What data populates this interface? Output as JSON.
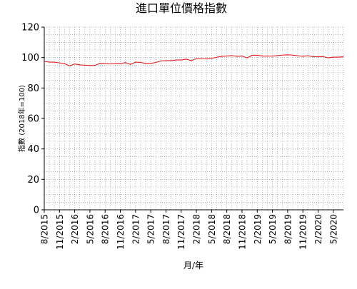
{
  "chart_data": {
    "type": "line",
    "title": "進口單位價格指數",
    "xlabel": "月/年",
    "ylabel": "指數 (2018年=100)",
    "ylim": [
      0,
      120
    ],
    "yticks": [
      "0",
      "20",
      "40",
      "60",
      "80",
      "100",
      "120"
    ],
    "x_tick_labels": [
      "8/2015",
      "11/2015",
      "2/2016",
      "5/2016",
      "8/2016",
      "11/2016",
      "2/2017",
      "5/2017",
      "8/2017",
      "11/2017",
      "2/2018",
      "5/2018",
      "8/2018",
      "11/2018",
      "2/2019",
      "5/2019",
      "8/2019",
      "11/2019",
      "2/2020",
      "5/2020"
    ],
    "grid": true,
    "legend": "none",
    "colors": {
      "series": "#e41a1c",
      "grid": "#888888",
      "axis": "#000000"
    },
    "series": [
      {
        "x": [
          "8/2015",
          "9/2015",
          "10/2015",
          "11/2015",
          "12/2015",
          "1/2016",
          "2/2016",
          "3/2016",
          "4/2016",
          "5/2016",
          "6/2016",
          "7/2016",
          "8/2016",
          "9/2016",
          "10/2016",
          "11/2016",
          "12/2016",
          "1/2017",
          "2/2017",
          "3/2017",
          "4/2017",
          "5/2017",
          "6/2017",
          "7/2017",
          "8/2017",
          "9/2017",
          "10/2017",
          "11/2017",
          "12/2017",
          "1/2018",
          "2/2018",
          "3/2018",
          "4/2018",
          "5/2018",
          "6/2018",
          "7/2018",
          "8/2018",
          "9/2018",
          "10/2018",
          "11/2018",
          "12/2018",
          "1/2019",
          "2/2019",
          "3/2019",
          "4/2019",
          "5/2019",
          "6/2019",
          "7/2019",
          "8/2019",
          "9/2019",
          "10/2019",
          "11/2019",
          "12/2019",
          "1/2020",
          "2/2020",
          "3/2020",
          "4/2020",
          "5/2020",
          "6/2020",
          "7/2020"
        ],
        "values": [
          97.5,
          97.0,
          97.0,
          96.5,
          96.0,
          94.5,
          95.8,
          95.2,
          95.0,
          94.8,
          94.8,
          96.2,
          96.0,
          95.8,
          96.0,
          96.0,
          96.7,
          95.5,
          97.0,
          96.8,
          96.2,
          96.2,
          96.8,
          97.8,
          98.0,
          98.0,
          98.4,
          98.4,
          99.0,
          98.0,
          99.3,
          99.2,
          99.2,
          99.5,
          100.2,
          100.8,
          101.0,
          101.3,
          100.8,
          101.0,
          99.8,
          101.5,
          101.5,
          101.0,
          101.0,
          101.0,
          101.3,
          101.6,
          101.8,
          101.6,
          101.2,
          100.8,
          101.2,
          100.6,
          100.5,
          100.6,
          99.8,
          100.3,
          100.3,
          100.5
        ]
      }
    ]
  }
}
